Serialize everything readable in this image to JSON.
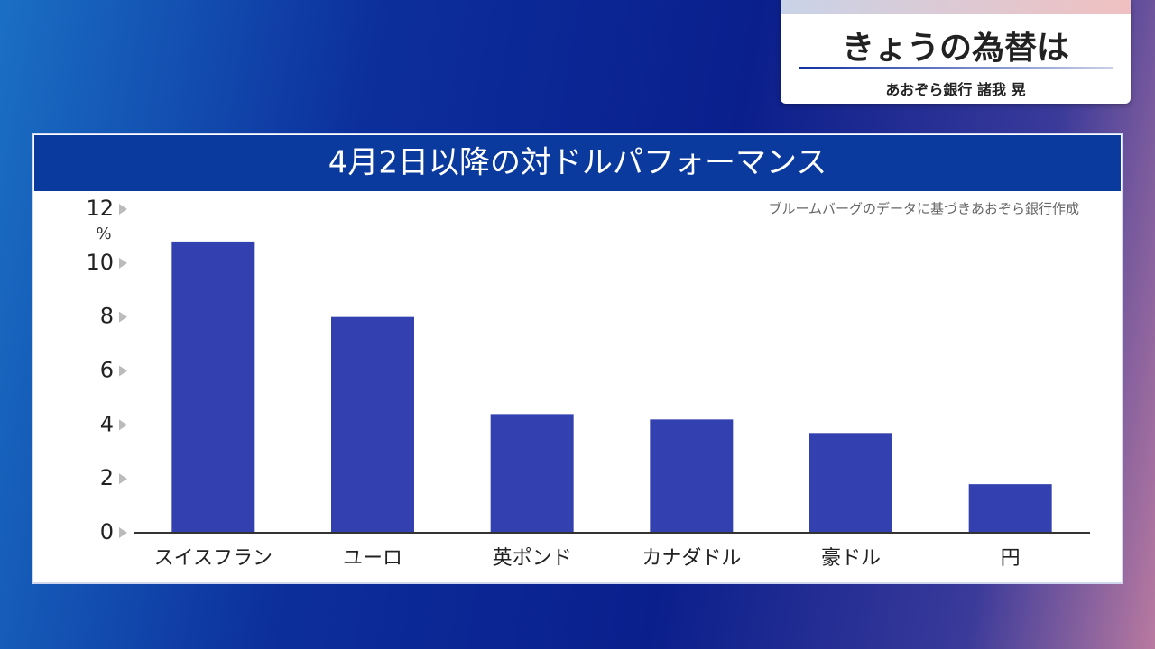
{
  "header": {
    "title": "きょうの為替は",
    "subtitle": "あおぞら銀行 諸我 晃"
  },
  "chart_data": {
    "type": "bar",
    "title": "4月2日以降の対ドルパフォーマンス",
    "note": "ブルームバーグのデータに基づきあおぞら銀行作成",
    "y_unit": "%",
    "categories": [
      "スイスフラン",
      "ユーロ",
      "英ポンド",
      "カナダドル",
      "豪ドル",
      "円"
    ],
    "values": [
      10.8,
      8.0,
      4.4,
      4.2,
      3.7,
      1.8
    ],
    "color": "#3340b0",
    "ylim": [
      0,
      12
    ],
    "yticks": [
      0,
      2,
      4,
      6,
      8,
      10,
      12
    ],
    "grid": false
  }
}
